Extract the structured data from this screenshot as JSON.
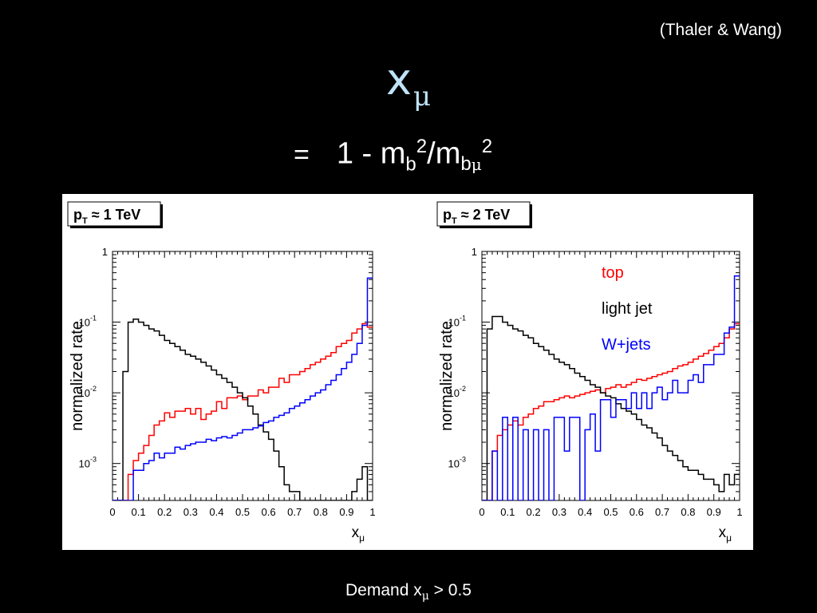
{
  "slide": {
    "citation": "(Thaler & Wang)",
    "title_main": "x",
    "title_sub": "μ",
    "formula": {
      "eq": "=",
      "lead": "1 - m",
      "sub1": "b",
      "sup1": "2",
      "slash": "/m",
      "sub2_b": "b",
      "sub2_mu": "μ",
      "sup2": "2"
    },
    "footer": {
      "pre": "Demand x",
      "sub": "μ",
      "post": " > 0.5"
    }
  },
  "chart_data": [
    {
      "type": "line",
      "step": true,
      "panel_label": "p_T ≈ 1 TeV",
      "panel_label_parts": {
        "p": "p",
        "sub": "T",
        "rest": " ≈ 1 TeV"
      },
      "ylabel": "normalized rate",
      "xlabel": "x_μ",
      "xlabel_parts": {
        "x": "x",
        "sub": "μ"
      },
      "xlim": [
        0,
        1
      ],
      "ylim": [
        0.0003,
        1
      ],
      "yscale": "log",
      "xticks": [
        "0",
        "0.1",
        "0.2",
        "0.3",
        "0.4",
        "0.5",
        "0.6",
        "0.7",
        "0.8",
        "0.9",
        "1"
      ],
      "yticks": [
        {
          "value": 1,
          "label": "1"
        },
        {
          "value": 0.1,
          "label": "10",
          "exp": "-1"
        },
        {
          "value": 0.01,
          "label": "10",
          "exp": "-2"
        },
        {
          "value": 0.001,
          "label": "10",
          "exp": "-3"
        }
      ],
      "bins": 50,
      "series": [
        {
          "name": "top",
          "color": "#ff0000",
          "values": [
            0.0003,
            0.0003,
            0.0003,
            0.0007,
            0.0011,
            0.0014,
            0.0018,
            0.0025,
            0.0035,
            0.004,
            0.0052,
            0.0045,
            0.0055,
            0.0055,
            0.006,
            0.005,
            0.006,
            0.0042,
            0.005,
            0.0055,
            0.0075,
            0.006,
            0.0085,
            0.0085,
            0.009,
            0.008,
            0.009,
            0.009,
            0.011,
            0.01,
            0.012,
            0.012,
            0.016,
            0.014,
            0.018,
            0.018,
            0.02,
            0.022,
            0.025,
            0.027,
            0.03,
            0.033,
            0.037,
            0.045,
            0.05,
            0.055,
            0.07,
            0.08,
            0.095,
            0.085
          ]
        },
        {
          "name": "light jet",
          "color": "#000000",
          "values": [
            0.0003,
            0.0003,
            0.02,
            0.1,
            0.11,
            0.1,
            0.09,
            0.08,
            0.075,
            0.065,
            0.055,
            0.05,
            0.045,
            0.04,
            0.035,
            0.033,
            0.03,
            0.027,
            0.024,
            0.021,
            0.018,
            0.016,
            0.014,
            0.012,
            0.01,
            0.0085,
            0.0065,
            0.005,
            0.0035,
            0.0028,
            0.0022,
            0.0015,
            0.0009,
            0.0005,
            0.0004,
            0.0004,
            0.0003,
            0.0003,
            0.0003,
            0.0003,
            0.0003,
            0.0003,
            0.0003,
            0.0003,
            0.0003,
            0.0003,
            0.0004,
            0.0006,
            0.0009,
            0.0003
          ]
        },
        {
          "name": "W+jets",
          "color": "#0000ff",
          "values": [
            0.0003,
            0.0003,
            0.0003,
            0.0003,
            0.0008,
            0.0008,
            0.001,
            0.0011,
            0.0014,
            0.0012,
            0.0014,
            0.0014,
            0.0017,
            0.0016,
            0.0018,
            0.0019,
            0.002,
            0.002,
            0.0022,
            0.0021,
            0.0023,
            0.0024,
            0.0023,
            0.0025,
            0.0027,
            0.003,
            0.003,
            0.0032,
            0.0034,
            0.0038,
            0.004,
            0.0045,
            0.0048,
            0.0052,
            0.006,
            0.0065,
            0.0072,
            0.008,
            0.009,
            0.01,
            0.011,
            0.013,
            0.015,
            0.018,
            0.022,
            0.027,
            0.035,
            0.05,
            0.09,
            0.42
          ]
        }
      ]
    },
    {
      "type": "line",
      "step": true,
      "panel_label": "p_T ≈ 2 TeV",
      "panel_label_parts": {
        "p": "p",
        "sub": "T",
        "rest": " ≈ 2 TeV"
      },
      "ylabel": "normalized rate",
      "xlabel": "x_μ",
      "xlabel_parts": {
        "x": "x",
        "sub": "μ"
      },
      "xlim": [
        0,
        1
      ],
      "ylim": [
        0.0003,
        1
      ],
      "yscale": "log",
      "xticks": [
        "0",
        "0.1",
        "0.2",
        "0.3",
        "0.4",
        "0.5",
        "0.6",
        "0.7",
        "0.8",
        "0.9",
        "1"
      ],
      "yticks": [
        {
          "value": 1,
          "label": "1"
        },
        {
          "value": 0.1,
          "label": "10",
          "exp": "-1"
        },
        {
          "value": 0.01,
          "label": "10",
          "exp": "-2"
        },
        {
          "value": 0.001,
          "label": "10",
          "exp": "-3"
        }
      ],
      "bins": 50,
      "legend": {
        "placement": "top-right",
        "entries": [
          "top",
          "light jet",
          "W+jets"
        ]
      },
      "series": [
        {
          "name": "top",
          "color": "#ff0000",
          "values": [
            0.0003,
            0.0003,
            0.0015,
            0.0025,
            0.003,
            0.0035,
            0.004,
            0.0035,
            0.0045,
            0.005,
            0.006,
            0.0065,
            0.0075,
            0.0075,
            0.008,
            0.0085,
            0.009,
            0.0085,
            0.009,
            0.0095,
            0.01,
            0.0105,
            0.011,
            0.01,
            0.0115,
            0.012,
            0.013,
            0.012,
            0.013,
            0.014,
            0.0155,
            0.015,
            0.016,
            0.017,
            0.018,
            0.019,
            0.02,
            0.022,
            0.024,
            0.025,
            0.027,
            0.03,
            0.033,
            0.036,
            0.04,
            0.045,
            0.05,
            0.06,
            0.08,
            0.095
          ]
        },
        {
          "name": "light jet",
          "color": "#000000",
          "values": [
            0.0003,
            0.08,
            0.12,
            0.12,
            0.1,
            0.09,
            0.08,
            0.075,
            0.065,
            0.06,
            0.05,
            0.045,
            0.04,
            0.035,
            0.03,
            0.027,
            0.025,
            0.022,
            0.019,
            0.017,
            0.015,
            0.013,
            0.012,
            0.01,
            0.009,
            0.0085,
            0.007,
            0.006,
            0.0055,
            0.005,
            0.0042,
            0.0035,
            0.0032,
            0.0027,
            0.0023,
            0.0018,
            0.0015,
            0.0013,
            0.0011,
            0.0009,
            0.0008,
            0.0008,
            0.0007,
            0.0006,
            0.0006,
            0.0005,
            0.0004,
            0.0007,
            0.0005,
            0.0007
          ]
        },
        {
          "name": "W+jets",
          "color": "#0000ff",
          "values": [
            0.0003,
            0.0003,
            0.0015,
            0.0003,
            0.0045,
            0.0003,
            0.0045,
            0.0003,
            0.003,
            0.0003,
            0.003,
            0.0003,
            0.003,
            0.0003,
            0.0045,
            0.0045,
            0.0015,
            0.0045,
            0.0045,
            0.0003,
            0.003,
            0.005,
            0.0015,
            0.008,
            0.008,
            0.0045,
            0.008,
            0.008,
            0.006,
            0.01,
            0.006,
            0.01,
            0.006,
            0.01,
            0.012,
            0.008,
            0.01,
            0.015,
            0.01,
            0.01,
            0.015,
            0.018,
            0.014,
            0.025,
            0.025,
            0.035,
            0.035,
            0.07,
            0.085,
            0.45
          ]
        }
      ]
    }
  ]
}
